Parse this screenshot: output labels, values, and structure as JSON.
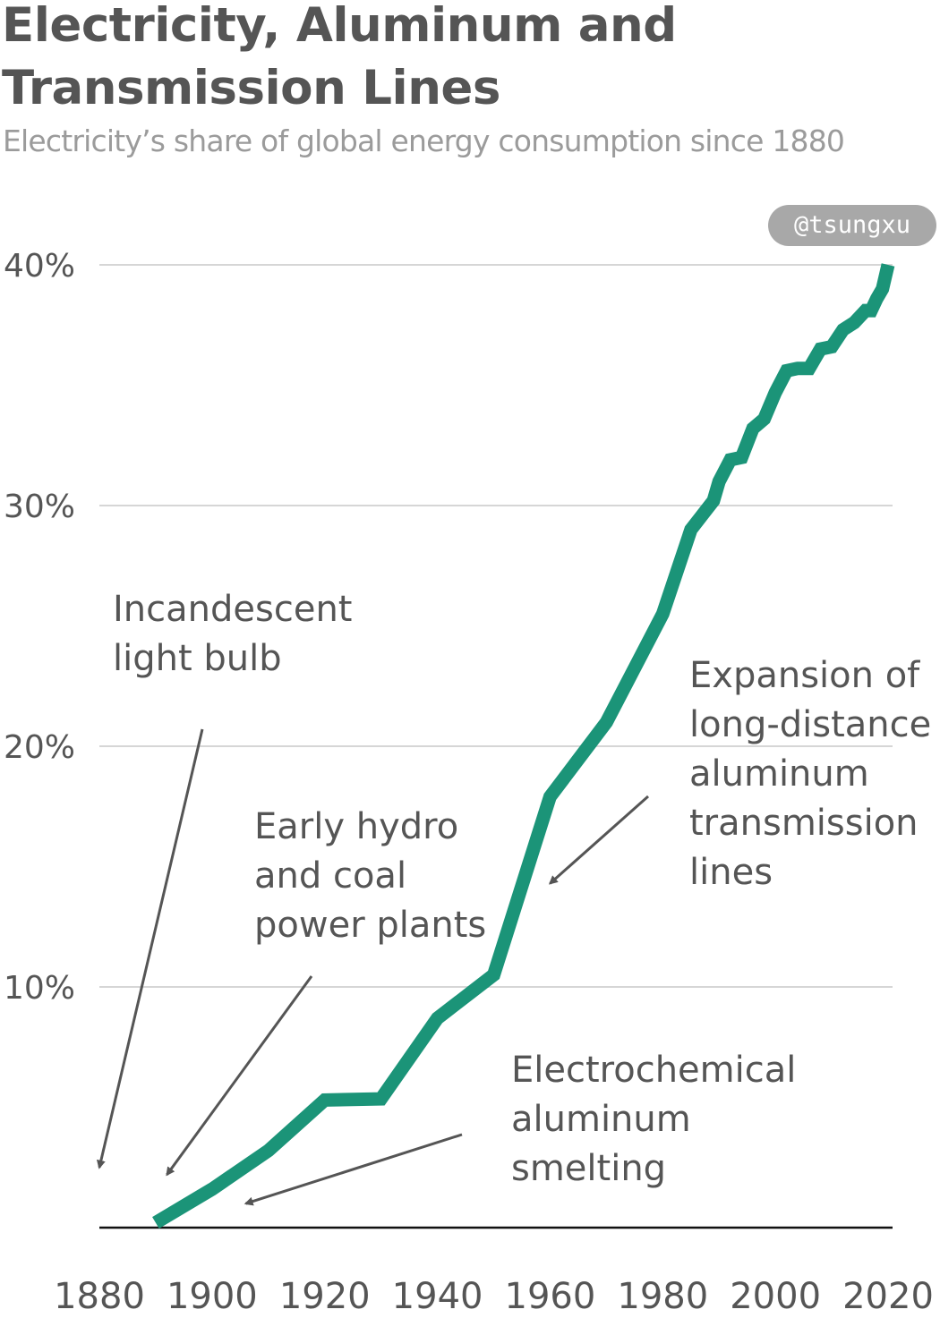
{
  "title_lines": [
    "Electricity, Aluminum and",
    "Transmission Lines"
  ],
  "subtitle": "Electricity’s share of global energy consumption since 1880",
  "watermark": "@tsungxu",
  "colors": {
    "line": "#1b9478",
    "grid": "#d6d6d6",
    "axis": "#111111",
    "text": "#555555",
    "subtitle": "#9b9b9b",
    "arrow": "#555555"
  },
  "chart_data": {
    "type": "line",
    "title": "Electricity, Aluminum and Transmission Lines",
    "subtitle": "Electricity’s share of global energy consumption since 1880",
    "xlabel": "",
    "ylabel": "",
    "xlim": [
      1880,
      2020
    ],
    "ylim": [
      0,
      40
    ],
    "grid": true,
    "x_ticks": [
      1880,
      1900,
      1920,
      1940,
      1960,
      1980,
      2000,
      2020
    ],
    "y_ticks": [
      10,
      20,
      30,
      40
    ],
    "y_tick_labels": [
      "10%",
      "20%",
      "30%",
      "40%"
    ],
    "series": [
      {
        "x": [
          1890,
          1900,
          1910,
          1920,
          1930,
          1940,
          1950,
          1960,
          1970,
          1980,
          1985,
          1987,
          1989,
          1990,
          1992,
          1994,
          1996,
          1998,
          2000,
          2002,
          2004,
          2006,
          2008,
          2010,
          2012,
          2014,
          2016,
          2017,
          2018,
          2019,
          2020
        ],
        "values": [
          0.2,
          1.6,
          3.2,
          5.3,
          5.35,
          8.7,
          10.5,
          17.9,
          21.0,
          25.5,
          29.0,
          29.6,
          30.2,
          31.0,
          31.9,
          32.0,
          33.2,
          33.6,
          34.7,
          35.6,
          35.7,
          35.7,
          36.5,
          36.6,
          37.3,
          37.6,
          38.1,
          38.1,
          38.6,
          39.0,
          40.0
        ]
      }
    ],
    "annotations": [
      {
        "lines": [
          "Incandescent",
          "light bulb"
        ],
        "arrow_to": {
          "x": 1880,
          "y": 2.5
        }
      },
      {
        "lines": [
          "Early hydro",
          "and coal",
          "power plants"
        ],
        "arrow_to": {
          "x": 1892,
          "y": 2.2
        }
      },
      {
        "lines": [
          "Electrochemical",
          "aluminum",
          "smelting"
        ],
        "arrow_to": {
          "x": 1906,
          "y": 1.0
        }
      },
      {
        "lines": [
          "Expansion of",
          "long-distance",
          "aluminum",
          "transmission",
          "lines"
        ],
        "arrow_to": {
          "x": 1960,
          "y": 14.3
        }
      }
    ]
  }
}
